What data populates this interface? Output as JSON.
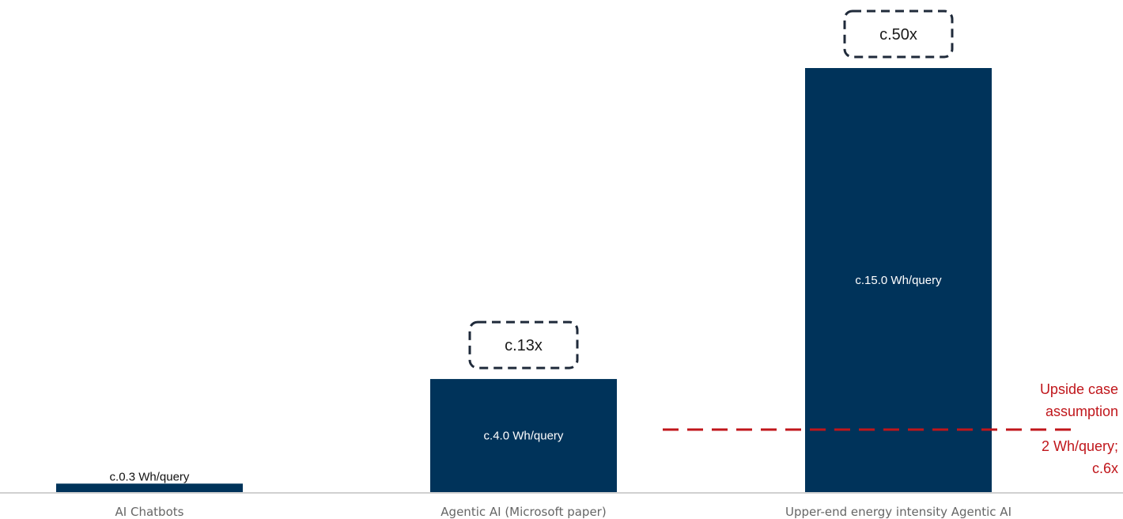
{
  "colors": {
    "bar": "#00335a",
    "baseline": "#d0d0d0",
    "reference": "#c0161b",
    "multiplier_border": "#1f2a3a"
  },
  "chart_data": {
    "type": "bar",
    "title": "",
    "xlabel": "",
    "ylabel": "",
    "categories": [
      "AI Chatbots",
      "Agentic AI (Microsoft paper)",
      "Upper-end energy intensity Agentic AI"
    ],
    "values": [
      0.3,
      4.0,
      15.0
    ],
    "value_labels": [
      "c.0.3 Wh/query",
      "c.4.0 Wh/query",
      "c.15.0 Wh/query"
    ],
    "multipliers": [
      "",
      "c.13x",
      "c.50x"
    ],
    "ylim": [
      0,
      15.0
    ],
    "grid": false,
    "reference_line": {
      "value": 2.0,
      "label_above": [
        "Upside case",
        "assumption"
      ],
      "label_below": [
        "2 Wh/query;",
        "c.6x"
      ]
    }
  }
}
